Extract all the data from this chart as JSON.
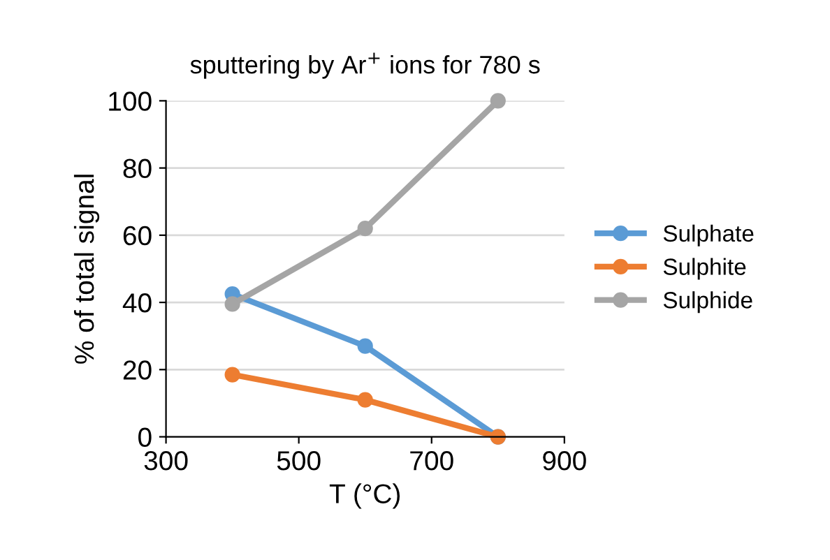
{
  "chart_data": {
    "type": "line",
    "title": "sputtering by Ar$^{+}$ ions for 780 s",
    "xlabel": "T (°C)",
    "ylabel": "% of total signal",
    "x": [
      400,
      600,
      800
    ],
    "series": [
      {
        "name": "Sulphate",
        "color": "#5b9bd5",
        "values": [
          42.5,
          27,
          0
        ]
      },
      {
        "name": "Sulphite",
        "color": "#ed7d31",
        "values": [
          18.5,
          11,
          0
        ]
      },
      {
        "name": "Sulphide",
        "color": "#a5a5a5",
        "values": [
          39.5,
          62,
          100
        ]
      }
    ],
    "xlim": [
      300,
      900
    ],
    "xticks": [
      300,
      500,
      700,
      900
    ],
    "ylim": [
      0,
      100
    ],
    "yticks": [
      0,
      20,
      40,
      60,
      80,
      100
    ],
    "grid": "y",
    "legend": "right",
    "marker": "circle",
    "line_style": "solid"
  }
}
